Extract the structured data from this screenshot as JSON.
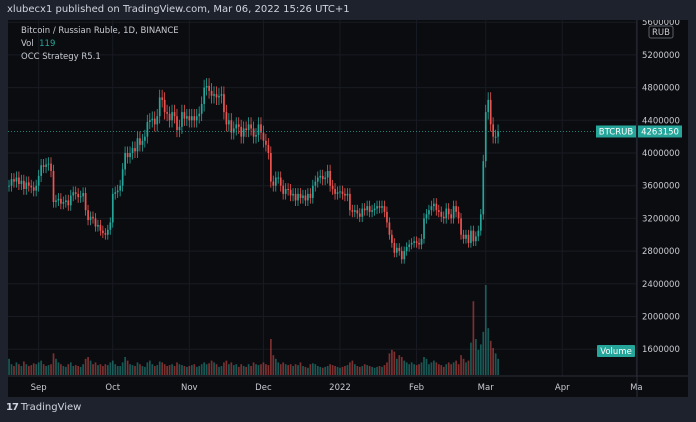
{
  "header": {
    "published": "xlubecx1 published on TradingView.com, Mar 06, 2022 15:26 UTC+1"
  },
  "legend": {
    "symbol": "Bitcoin / Russian Ruble, 1D, BINANCE",
    "vol_label": "Vol",
    "vol_value": "119",
    "strategy": "OCC Strategy R5.1"
  },
  "footer": {
    "brand": "TradingView",
    "logo_text": "17"
  },
  "chart_data": {
    "type": "candlestick",
    "currency_label": "RUB",
    "symbol_tag": "BTCRUB",
    "last_price": 4263150,
    "last_price_label": "4263150",
    "volume_tag": "Volume",
    "ylim": [
      1300000,
      5650000
    ],
    "y_ticks": [
      5600000,
      5200000,
      4800000,
      4400000,
      4000000,
      3600000,
      3200000,
      2800000,
      2400000,
      2000000,
      1600000
    ],
    "y_tick_labels": [
      "5600000",
      "5200000",
      "4800000",
      "4400000",
      "4000000",
      "3600000",
      "3200000",
      "2800000",
      "2400000",
      "2000000",
      "1600000"
    ],
    "x_ticks": [
      {
        "label": "Sep",
        "date": "2021-09-01"
      },
      {
        "label": "Oct",
        "date": "2021-10-01"
      },
      {
        "label": "Nov",
        "date": "2021-11-01"
      },
      {
        "label": "Dec",
        "date": "2021-12-01"
      },
      {
        "label": "2022",
        "date": "2022-01-01"
      },
      {
        "label": "Feb",
        "date": "2022-02-01"
      },
      {
        "label": "Mar",
        "date": "2022-03-01"
      },
      {
        "label": "Apr",
        "date": "2022-04-01"
      },
      {
        "label": "Ma",
        "date": "2022-05-01"
      }
    ],
    "colors": {
      "up": "#26a69a",
      "down": "#ef5350",
      "background": "#0b0c10",
      "frame": "#1e222d"
    },
    "grid": true,
    "months": [
      {
        "month": "2021-08",
        "from_day": 20,
        "close": [
          3600000,
          3680000,
          3650000,
          3700000,
          3620000,
          3660000,
          3560000,
          3640000,
          3600000,
          3580000,
          3540000,
          3600000
        ],
        "volume": [
          18,
          12,
          10,
          14,
          12,
          10,
          15,
          12,
          10,
          11,
          13,
          12
        ]
      },
      {
        "month": "2021-09",
        "from_day": 1,
        "close": [
          3720000,
          3850000,
          3830000,
          3860000,
          3870000,
          3780000,
          3400000,
          3420000,
          3440000,
          3380000,
          3400000,
          3420000,
          3360000,
          3480000,
          3520000,
          3500000,
          3460000,
          3470000,
          3510000,
          3300000,
          3180000,
          3220000,
          3200000,
          3100000,
          3120000,
          3050000,
          3020000,
          3000000,
          3060000,
          3150000
        ],
        "volume": [
          14,
          16,
          12,
          10,
          11,
          12,
          24,
          18,
          14,
          12,
          10,
          9,
          12,
          14,
          10,
          11,
          10,
          9,
          12,
          18,
          20,
          16,
          12,
          14,
          11,
          12,
          10,
          12,
          11,
          14
        ]
      },
      {
        "month": "2021-10",
        "from_day": 1,
        "close": [
          3500000,
          3520000,
          3540000,
          3600000,
          3800000,
          4000000,
          3950000,
          4000000,
          4060000,
          4020000,
          4180000,
          4100000,
          4150000,
          4200000,
          4380000,
          4400000,
          4420000,
          4350000,
          4450000,
          4680000,
          4650000,
          4500000,
          4480000,
          4400000,
          4500000,
          4450000,
          4280000,
          4320000,
          4500000,
          4420000,
          4450000
        ],
        "volume": [
          16,
          12,
          10,
          10,
          14,
          20,
          16,
          12,
          11,
          10,
          14,
          12,
          10,
          9,
          14,
          16,
          12,
          10,
          11,
          15,
          14,
          12,
          10,
          11,
          12,
          10,
          14,
          12,
          11,
          10,
          9
        ]
      },
      {
        "month": "2021-11",
        "from_day": 1,
        "close": [
          4400000,
          4450000,
          4400000,
          4450000,
          4480000,
          4600000,
          4800000,
          4820000,
          4760000,
          4700000,
          4720000,
          4680000,
          4700000,
          4720000,
          4500000,
          4350000,
          4400000,
          4250000,
          4300000,
          4350000,
          4320000,
          4200000,
          4300000,
          4280000,
          4350000,
          4300000,
          4200000,
          4220000,
          4350000,
          4250000
        ],
        "volume": [
          10,
          11,
          12,
          9,
          10,
          12,
          14,
          12,
          13,
          16,
          14,
          12,
          9,
          10,
          14,
          16,
          12,
          14,
          11,
          12,
          9,
          12,
          10,
          9,
          12,
          10,
          14,
          12,
          11,
          12
        ]
      },
      {
        "month": "2021-12",
        "from_day": 1,
        "close": [
          4150000,
          4100000,
          4000000,
          3650000,
          3600000,
          3700000,
          3700000,
          3600000,
          3500000,
          3560000,
          3550000,
          3480000,
          3500000,
          3420000,
          3500000,
          3450000,
          3480000,
          3420000,
          3500000,
          3450000,
          3600000,
          3650000,
          3700000,
          3720000,
          3680000,
          3700000,
          3780000,
          3600000,
          3560000,
          3500000,
          3520000
        ],
        "volume": [
          14,
          12,
          11,
          40,
          22,
          18,
          14,
          12,
          14,
          12,
          11,
          12,
          10,
          12,
          11,
          14,
          10,
          9,
          8,
          12,
          13,
          12,
          10,
          9,
          8,
          9,
          10,
          12,
          11,
          10,
          9
        ]
      },
      {
        "month": "2022-01",
        "from_day": 1,
        "close": [
          3530000,
          3500000,
          3480000,
          3500000,
          3300000,
          3280000,
          3300000,
          3260000,
          3220000,
          3320000,
          3300000,
          3350000,
          3280000,
          3300000,
          3320000,
          3350000,
          3330000,
          3350000,
          3280000,
          3150000,
          3000000,
          2900000,
          2780000,
          2840000,
          2800000,
          2700000,
          2800000,
          2850000,
          2880000,
          2900000,
          2920000
        ],
        "volume": [
          8,
          9,
          10,
          11,
          14,
          16,
          12,
          10,
          9,
          10,
          12,
          11,
          10,
          9,
          8,
          9,
          10,
          9,
          11,
          14,
          24,
          28,
          26,
          18,
          22,
          20,
          16,
          14,
          12,
          14,
          12
        ]
      },
      {
        "month": "2022-02",
        "from_day": 1,
        "close": [
          2900000,
          2880000,
          2950000,
          3200000,
          3250000,
          3300000,
          3350000,
          3380000,
          3300000,
          3280000,
          3220000,
          3200000,
          3320000,
          3250000,
          3200000,
          3350000,
          3280000,
          3200000,
          3000000,
          2950000,
          3000000,
          2900000,
          3050000,
          2920000,
          2980000,
          3050000,
          3250000,
          3900000
        ],
        "volume": [
          11,
          12,
          14,
          20,
          18,
          12,
          14,
          16,
          14,
          12,
          11,
          9,
          12,
          14,
          12,
          14,
          16,
          12,
          22,
          18,
          14,
          16,
          36,
          82,
          40,
          28,
          34,
          48
        ]
      },
      {
        "month": "2022-03",
        "from_day": 1,
        "close": [
          4500000,
          4650000,
          4350000,
          4200000,
          4200000,
          4263150
        ],
        "volume": [
          100,
          52,
          38,
          30,
          24,
          18
        ]
      }
    ]
  }
}
